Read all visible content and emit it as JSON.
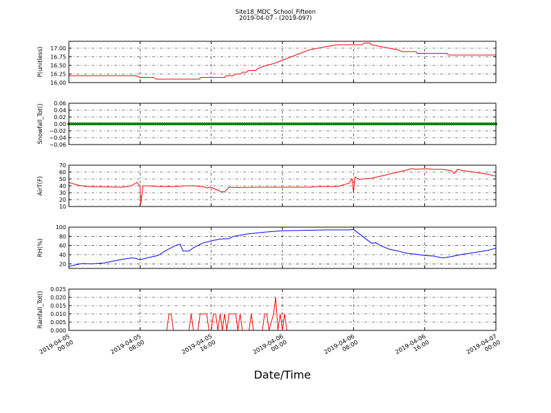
{
  "title": "Site18_MDC_School_Fifteen",
  "subtitle": "2019-04-07 - (2019-097)",
  "xlabel": "Date/Time",
  "x_ticks": [
    {
      "value": "2019-04-05 00:00",
      "line1": "2019-04-05",
      "line2": "00:00"
    },
    {
      "value": "2019-04-05 08:00",
      "line1": "2019-04-05",
      "line2": "08:00"
    },
    {
      "value": "2019-04-05 16:00",
      "line1": "2019-04-05",
      "line2": "16:00"
    },
    {
      "value": "2019-04-06 00:00",
      "line1": "2019-04-06",
      "line2": "00:00"
    },
    {
      "value": "2019-04-06 08:00",
      "line1": "2019-04-06",
      "line2": "08:00"
    },
    {
      "value": "2019-04-06 16:00",
      "line1": "2019-04-06",
      "line2": "16:00"
    },
    {
      "value": "2019-04-07 00:00",
      "line1": "2019-04-07",
      "line2": "00:00"
    }
  ],
  "chart_data": [
    {
      "type": "line",
      "ylabel": "P(unitless)",
      "ylim": [
        16.0,
        17.2
      ],
      "yticks": [
        "16.00",
        "16.25",
        "16.50",
        "16.75",
        "17.00"
      ],
      "ytick_values": [
        16.0,
        16.25,
        16.5,
        16.75,
        17.0
      ],
      "color": "#ff0000",
      "grid": true,
      "points": [
        [
          "2019-04-05 00:00",
          16.2
        ],
        [
          "2019-04-05 07:30",
          16.2
        ],
        [
          "2019-04-05 08:00",
          16.15
        ],
        [
          "2019-04-05 09:30",
          16.15
        ],
        [
          "2019-04-05 09:50",
          16.1
        ],
        [
          "2019-04-05 14:40",
          16.1
        ],
        [
          "2019-04-05 14:50",
          16.15
        ],
        [
          "2019-04-05 17:30",
          16.15
        ],
        [
          "2019-04-05 17:40",
          16.2
        ],
        [
          "2019-04-05 18:30",
          16.2
        ],
        [
          "2019-04-05 18:40",
          16.25
        ],
        [
          "2019-04-05 19:20",
          16.25
        ],
        [
          "2019-04-05 19:30",
          16.3
        ],
        [
          "2019-04-05 20:00",
          16.3
        ],
        [
          "2019-04-05 20:10",
          16.35
        ],
        [
          "2019-04-05 21:00",
          16.35
        ],
        [
          "2019-04-05 21:10",
          16.4
        ],
        [
          "2019-04-05 21:40",
          16.45
        ],
        [
          "2019-04-05 22:10",
          16.5
        ],
        [
          "2019-04-05 23:00",
          16.55
        ],
        [
          "2019-04-06 00:00",
          16.65
        ],
        [
          "2019-04-06 01:00",
          16.75
        ],
        [
          "2019-04-06 02:00",
          16.85
        ],
        [
          "2019-04-06 03:00",
          16.95
        ],
        [
          "2019-04-06 04:00",
          17.0
        ],
        [
          "2019-04-06 05:00",
          17.05
        ],
        [
          "2019-04-06 06:10",
          17.1
        ],
        [
          "2019-04-06 09:00",
          17.1
        ],
        [
          "2019-04-06 09:10",
          17.15
        ],
        [
          "2019-04-06 09:50",
          17.15
        ],
        [
          "2019-04-06 10:00",
          17.1
        ],
        [
          "2019-04-06 11:00",
          17.05
        ],
        [
          "2019-04-06 12:00",
          17.0
        ],
        [
          "2019-04-06 13:00",
          16.95
        ],
        [
          "2019-04-06 13:30",
          16.9
        ],
        [
          "2019-04-06 15:00",
          16.9
        ],
        [
          "2019-04-06 15:10",
          16.85
        ],
        [
          "2019-04-06 18:30",
          16.85
        ],
        [
          "2019-04-06 18:40",
          16.8
        ],
        [
          "2019-04-07 00:00",
          16.8
        ]
      ]
    },
    {
      "type": "scatter",
      "ylabel": "Snowfall_Tot()",
      "ylim": [
        -0.06,
        0.06
      ],
      "yticks": [
        "−0.06",
        "−0.04",
        "−0.02",
        "0.00",
        "0.02",
        "0.04",
        "0.06"
      ],
      "ytick_values": [
        -0.06,
        -0.04,
        -0.02,
        0.0,
        0.02,
        0.04,
        0.06
      ],
      "color": "#008000",
      "grid": true,
      "constant_value": 0.0,
      "sample_interval_minutes": 15
    },
    {
      "type": "line",
      "ylabel": "AirT(F)",
      "ylim": [
        10,
        70
      ],
      "yticks": [
        "10",
        "20",
        "30",
        "40",
        "50",
        "60",
        "70"
      ],
      "ytick_values": [
        10,
        20,
        30,
        40,
        50,
        60,
        70
      ],
      "color": "#ff0000",
      "grid": true,
      "points": [
        [
          "2019-04-05 00:00",
          45
        ],
        [
          "2019-04-05 01:00",
          41
        ],
        [
          "2019-04-05 02:00",
          39
        ],
        [
          "2019-04-05 04:00",
          38.5
        ],
        [
          "2019-04-05 06:00",
          38
        ],
        [
          "2019-04-05 07:00",
          40
        ],
        [
          "2019-04-05 07:40",
          45
        ],
        [
          "2019-04-05 08:00",
          40
        ],
        [
          "2019-04-05 08:05",
          13
        ],
        [
          "2019-04-05 08:20",
          40
        ],
        [
          "2019-04-05 09:00",
          40
        ],
        [
          "2019-04-05 10:00",
          39
        ],
        [
          "2019-04-05 12:00",
          39
        ],
        [
          "2019-04-05 13:00",
          40
        ],
        [
          "2019-04-05 14:00",
          40
        ],
        [
          "2019-04-05 15:00",
          39
        ],
        [
          "2019-04-05 15:30",
          37
        ],
        [
          "2019-04-05 16:00",
          38
        ],
        [
          "2019-04-05 16:30",
          35
        ],
        [
          "2019-04-05 17:00",
          32
        ],
        [
          "2019-04-05 17:30",
          31
        ],
        [
          "2019-04-05 18:00",
          38
        ],
        [
          "2019-04-05 19:00",
          37.5
        ],
        [
          "2019-04-05 21:00",
          38
        ],
        [
          "2019-04-05 23:00",
          38
        ],
        [
          "2019-04-06 02:00",
          38
        ],
        [
          "2019-04-06 03:00",
          38
        ],
        [
          "2019-04-06 04:00",
          39
        ],
        [
          "2019-04-06 06:00",
          39
        ],
        [
          "2019-04-06 06:30",
          40
        ],
        [
          "2019-04-06 07:30",
          44
        ],
        [
          "2019-04-06 07:50",
          50
        ],
        [
          "2019-04-06 08:00",
          30
        ],
        [
          "2019-04-06 08:10",
          53
        ],
        [
          "2019-04-06 08:40",
          49
        ],
        [
          "2019-04-06 09:00",
          50
        ],
        [
          "2019-04-06 10:00",
          51
        ],
        [
          "2019-04-06 11:00",
          54
        ],
        [
          "2019-04-06 12:00",
          57
        ],
        [
          "2019-04-06 13:00",
          60
        ],
        [
          "2019-04-06 14:00",
          63
        ],
        [
          "2019-04-06 14:30",
          65
        ],
        [
          "2019-04-06 15:00",
          64
        ],
        [
          "2019-04-06 16:00",
          65
        ],
        [
          "2019-04-06 17:00",
          64
        ],
        [
          "2019-04-06 18:00",
          64
        ],
        [
          "2019-04-06 19:00",
          62
        ],
        [
          "2019-04-06 19:20",
          58
        ],
        [
          "2019-04-06 19:40",
          64
        ],
        [
          "2019-04-06 20:00",
          63
        ],
        [
          "2019-04-06 21:00",
          61
        ],
        [
          "2019-04-06 22:00",
          59
        ],
        [
          "2019-04-06 23:00",
          57
        ],
        [
          "2019-04-07 00:00",
          54
        ]
      ]
    },
    {
      "type": "line",
      "ylabel": "RH(%)",
      "ylim": [
        10,
        100
      ],
      "yticks": [
        "20",
        "40",
        "60",
        "80",
        "100"
      ],
      "ytick_values": [
        20,
        40,
        60,
        80,
        100
      ],
      "color": "#0000ff",
      "grid": true,
      "points": [
        [
          "2019-04-05 00:00",
          14
        ],
        [
          "2019-04-05 01:00",
          19
        ],
        [
          "2019-04-05 01:30",
          21
        ],
        [
          "2019-04-05 02:30",
          20
        ],
        [
          "2019-04-05 04:00",
          22
        ],
        [
          "2019-04-05 05:00",
          26
        ],
        [
          "2019-04-05 06:00",
          30
        ],
        [
          "2019-04-05 07:00",
          33
        ],
        [
          "2019-04-05 07:30",
          32
        ],
        [
          "2019-04-05 08:00",
          29
        ],
        [
          "2019-04-05 09:00",
          34
        ],
        [
          "2019-04-05 10:00",
          38
        ],
        [
          "2019-04-05 11:00",
          50
        ],
        [
          "2019-04-05 12:00",
          60
        ],
        [
          "2019-04-05 12:30",
          63
        ],
        [
          "2019-04-05 12:50",
          48
        ],
        [
          "2019-04-05 13:30",
          48
        ],
        [
          "2019-04-05 14:00",
          55
        ],
        [
          "2019-04-05 15:00",
          65
        ],
        [
          "2019-04-05 16:00",
          70
        ],
        [
          "2019-04-05 17:00",
          74
        ],
        [
          "2019-04-05 18:00",
          75
        ],
        [
          "2019-04-05 18:30",
          80
        ],
        [
          "2019-04-05 20:00",
          85
        ],
        [
          "2019-04-05 22:00",
          89
        ],
        [
          "2019-04-06 00:00",
          92
        ],
        [
          "2019-04-06 02:00",
          93
        ],
        [
          "2019-04-06 05:00",
          94
        ],
        [
          "2019-04-06 07:30",
          94
        ],
        [
          "2019-04-06 08:00",
          95
        ],
        [
          "2019-04-06 09:00",
          80
        ],
        [
          "2019-04-06 10:00",
          65
        ],
        [
          "2019-04-06 10:30",
          66
        ],
        [
          "2019-04-06 11:00",
          60
        ],
        [
          "2019-04-06 12:00",
          52
        ],
        [
          "2019-04-06 13:00",
          48
        ],
        [
          "2019-04-06 14:00",
          43
        ],
        [
          "2019-04-06 15:00",
          41
        ],
        [
          "2019-04-06 16:00",
          38
        ],
        [
          "2019-04-06 17:00",
          37
        ],
        [
          "2019-04-06 18:00",
          33
        ],
        [
          "2019-04-06 19:00",
          36
        ],
        [
          "2019-04-06 20:00",
          40
        ],
        [
          "2019-04-06 22:00",
          46
        ],
        [
          "2019-04-06 23:00",
          49
        ],
        [
          "2019-04-07 00:00",
          54
        ]
      ]
    },
    {
      "type": "line",
      "ylabel": "Rainfall_Tot()",
      "ylim": [
        0,
        0.025
      ],
      "yticks": [
        "0.000",
        "0.005",
        "0.010",
        "0.015",
        "0.020",
        "0.025"
      ],
      "ytick_values": [
        0.0,
        0.005,
        0.01,
        0.015,
        0.02,
        0.025
      ],
      "color": "#ff0000",
      "grid": true,
      "points": [
        [
          "2019-04-05 00:00",
          0
        ],
        [
          "2019-04-05 11:00",
          0
        ],
        [
          "2019-04-05 11:15",
          0.01
        ],
        [
          "2019-04-05 11:30",
          0.01
        ],
        [
          "2019-04-05 11:45",
          0
        ],
        [
          "2019-04-05 13:30",
          0
        ],
        [
          "2019-04-05 13:45",
          0.01
        ],
        [
          "2019-04-05 14:00",
          0
        ],
        [
          "2019-04-05 14:30",
          0
        ],
        [
          "2019-04-05 14:45",
          0.01
        ],
        [
          "2019-04-05 15:30",
          0.01
        ],
        [
          "2019-04-05 15:45",
          0
        ],
        [
          "2019-04-05 16:00",
          0
        ],
        [
          "2019-04-05 16:15",
          0.01
        ],
        [
          "2019-04-05 16:30",
          0.01
        ],
        [
          "2019-04-05 16:45",
          0
        ],
        [
          "2019-04-05 17:00",
          0.01
        ],
        [
          "2019-04-05 17:15",
          0
        ],
        [
          "2019-04-05 17:30",
          0.01
        ],
        [
          "2019-04-05 17:45",
          0
        ],
        [
          "2019-04-05 18:00",
          0.01
        ],
        [
          "2019-04-05 18:45",
          0.01
        ],
        [
          "2019-04-05 19:00",
          0
        ],
        [
          "2019-04-05 19:15",
          0.01
        ],
        [
          "2019-04-05 19:30",
          0
        ],
        [
          "2019-04-05 20:15",
          0
        ],
        [
          "2019-04-05 20:30",
          0.01
        ],
        [
          "2019-04-05 20:45",
          0
        ],
        [
          "2019-04-05 21:45",
          0
        ],
        [
          "2019-04-05 22:00",
          0.01
        ],
        [
          "2019-04-05 22:15",
          0.01
        ],
        [
          "2019-04-05 22:30",
          0
        ],
        [
          "2019-04-05 23:00",
          0.01
        ],
        [
          "2019-04-05 23:15",
          0.02
        ],
        [
          "2019-04-05 23:30",
          0
        ],
        [
          "2019-04-05 23:45",
          0.01
        ],
        [
          "2019-04-06 00:00",
          0
        ],
        [
          "2019-04-06 00:15",
          0.01
        ],
        [
          "2019-04-06 00:30",
          0
        ],
        [
          "2019-04-07 00:00",
          0
        ]
      ]
    }
  ]
}
